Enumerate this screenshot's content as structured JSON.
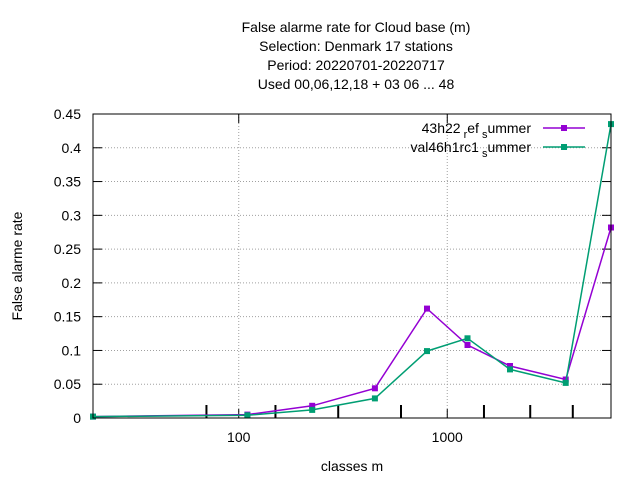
{
  "chart_data": {
    "type": "line",
    "title_lines": [
      "False alarme rate  for Cloud base (m)",
      "Selection: Denmark     17 stations",
      "Period: 20220701-20220717",
      "Used  00,06,12,18  + 03 06 ... 48"
    ],
    "xlabel": "classes m",
    "ylabel": "False alarme rate",
    "x_scale": "log",
    "xlim": [
      20,
      6100
    ],
    "ylim": [
      0,
      0.45
    ],
    "x_ticks": [
      100,
      1000
    ],
    "y_ticks": [
      0,
      0.05,
      0.1,
      0.15,
      0.2,
      0.25,
      0.3,
      0.35,
      0.4,
      0.45
    ],
    "y_tick_labels": [
      "0",
      "0.05",
      "0.1",
      "0.15",
      "0.2",
      "0.25",
      "0.3",
      "0.35",
      "0.4",
      "0.45"
    ],
    "x_minor_ticks": [
      70,
      150,
      300,
      600,
      1500,
      2500,
      4000
    ],
    "grid": true,
    "legend_position": "top-right",
    "x": [
      20,
      110,
      225,
      450,
      800,
      1250,
      2000,
      3700,
      6100
    ],
    "series": [
      {
        "name_main": "43h22",
        "name_sub1": "r",
        "name_mid": "ef",
        "name_sub2": "s",
        "name_tail": "ummer",
        "color": "#9400d3",
        "values": [
          0.002,
          0.005,
          0.018,
          0.044,
          0.162,
          0.108,
          0.077,
          0.057,
          0.282
        ]
      },
      {
        "name_main": "val46h1rc1",
        "name_sub1": "",
        "name_mid": "",
        "name_sub2": "s",
        "name_tail": "ummer",
        "color": "#009e73",
        "values": [
          0.002,
          0.004,
          0.012,
          0.029,
          0.099,
          0.118,
          0.072,
          0.052,
          0.435
        ]
      }
    ]
  }
}
